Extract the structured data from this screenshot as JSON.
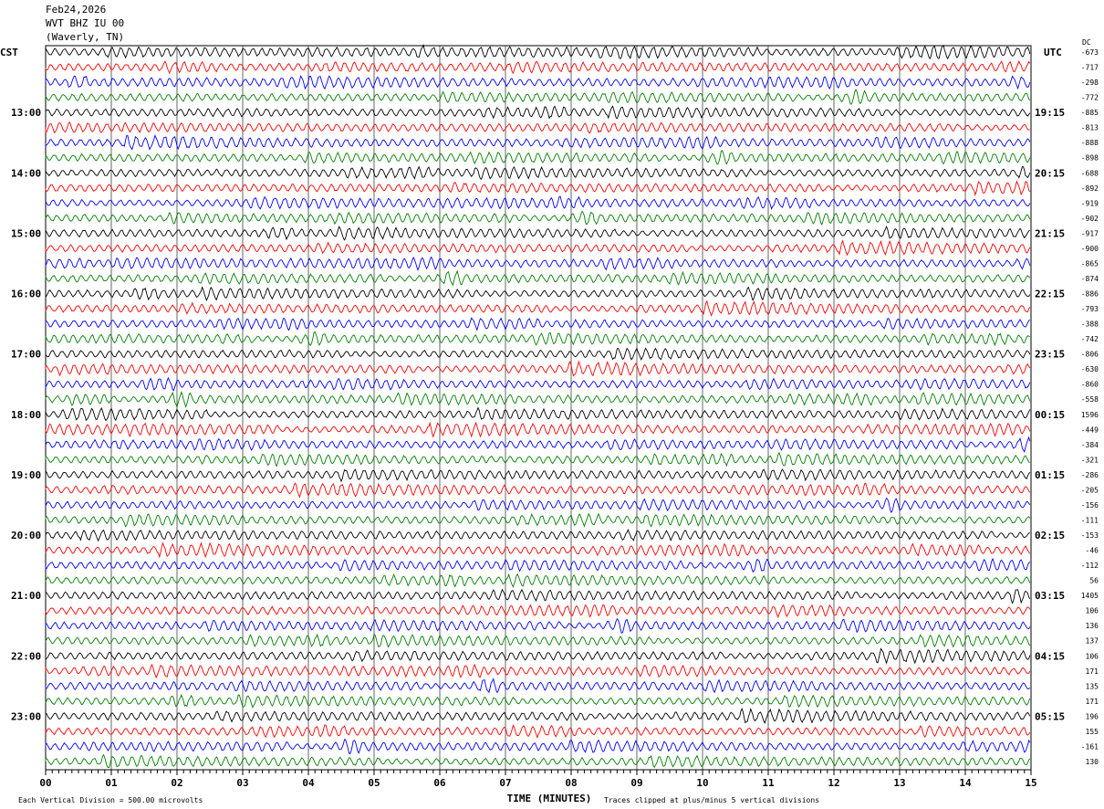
{
  "header": {
    "date": "Feb24,2026",
    "station": "WVT BHZ IU 00",
    "location": "(Waverly, TN)"
  },
  "chart_data": {
    "type": "line",
    "subtype": "helicorder",
    "left_axis_title": "CST",
    "right_axis_title": "UTC",
    "dc_title": "DC",
    "left_labels": [
      "",
      "13:00",
      "14:00",
      "15:00",
      "16:00",
      "17:00",
      "18:00",
      "19:00",
      "20:00",
      "21:00",
      "22:00",
      "23:00"
    ],
    "right_labels": [
      "",
      "19:15",
      "20:15",
      "21:15",
      "22:15",
      "23:15",
      "00:15",
      "01:15",
      "02:15",
      "03:15",
      "04:15",
      "05:15"
    ],
    "dc_offsets": [
      "-673",
      "-717",
      "-298",
      "-772",
      "-885",
      "-813",
      "-888",
      "-898",
      "-688",
      "-892",
      "-919",
      "-902",
      "-917",
      "-900",
      "-865",
      "-874",
      "-886",
      "-793",
      "-388",
      "-742",
      "-806",
      "-630",
      "-860",
      "-558",
      "1596",
      "-449",
      "-384",
      "-321",
      "-286",
      "-205",
      "-156",
      "-111",
      "-153",
      "-46",
      "-112",
      "56",
      "1405",
      "106",
      "136",
      "137",
      "106",
      "171",
      "135",
      "171",
      "196",
      "155",
      "-161",
      "130"
    ],
    "trace_colors": [
      "#000000",
      "#ff0000",
      "#0000ff",
      "#008000"
    ],
    "x_ticks": [
      "00",
      "01",
      "02",
      "03",
      "04",
      "05",
      "06",
      "07",
      "08",
      "09",
      "10",
      "11",
      "12",
      "13",
      "14",
      "15"
    ],
    "xlim": [
      0,
      15
    ],
    "xlabel": "TIME (MINUTES)",
    "scale_note": "Each Vertical Division =  500.00 microvolts",
    "clip_note": "Traces clipped at plus/minus 5 vertical divisions",
    "grid": true
  }
}
